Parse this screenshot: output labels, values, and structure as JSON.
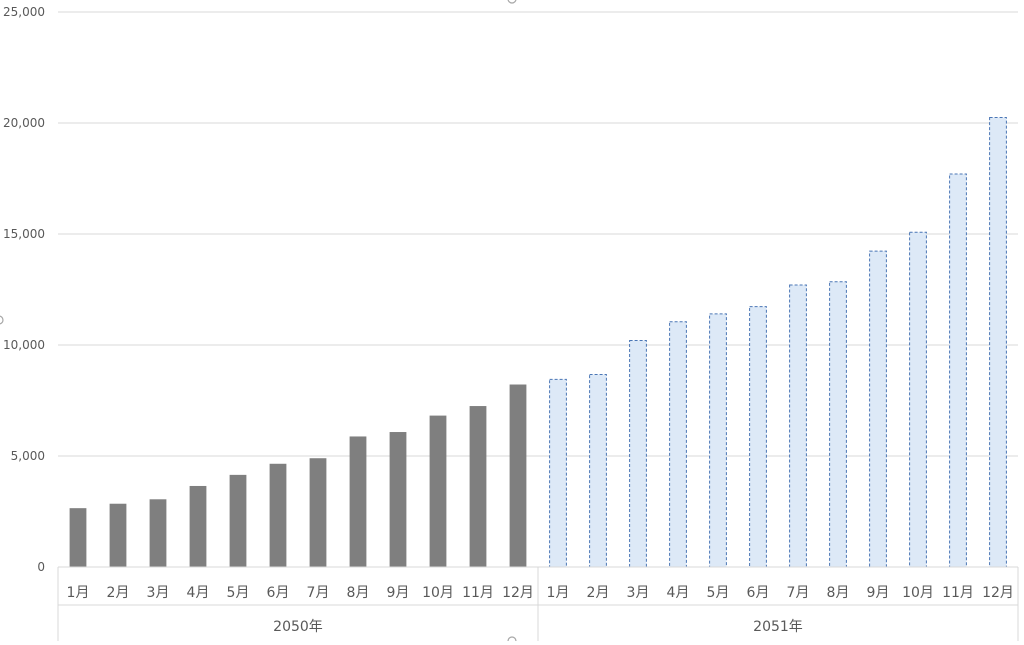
{
  "chart_data": {
    "type": "bar",
    "title": "",
    "xlabel": "",
    "ylabel": "",
    "ylim": [
      0,
      25000
    ],
    "yticks": [
      0,
      5000,
      10000,
      15000,
      20000,
      25000
    ],
    "ytick_labels": [
      "0",
      "5,000",
      "10,000",
      "15,000",
      "20,000",
      "25,000"
    ],
    "grid": true,
    "legend": "none",
    "groups": [
      {
        "label": "2050年",
        "style": "solid",
        "color": "#7f7f7f",
        "categories": [
          "1月",
          "2月",
          "3月",
          "4月",
          "5月",
          "6月",
          "7月",
          "8月",
          "9月",
          "10月",
          "11月",
          "12月"
        ],
        "values": [
          2650,
          2850,
          3050,
          3650,
          4150,
          4650,
          4900,
          5880,
          6080,
          6820,
          7250,
          8220
        ]
      },
      {
        "label": "2051年",
        "style": "dashed",
        "color": "#dde9f7",
        "stroke": "#4a76b5",
        "categories": [
          "1月",
          "2月",
          "3月",
          "4月",
          "5月",
          "6月",
          "7月",
          "8月",
          "9月",
          "10月",
          "11月",
          "12月"
        ],
        "values": [
          8450,
          8670,
          10200,
          11050,
          11400,
          11730,
          12700,
          12850,
          14230,
          15080,
          17700,
          20250
        ]
      }
    ]
  }
}
